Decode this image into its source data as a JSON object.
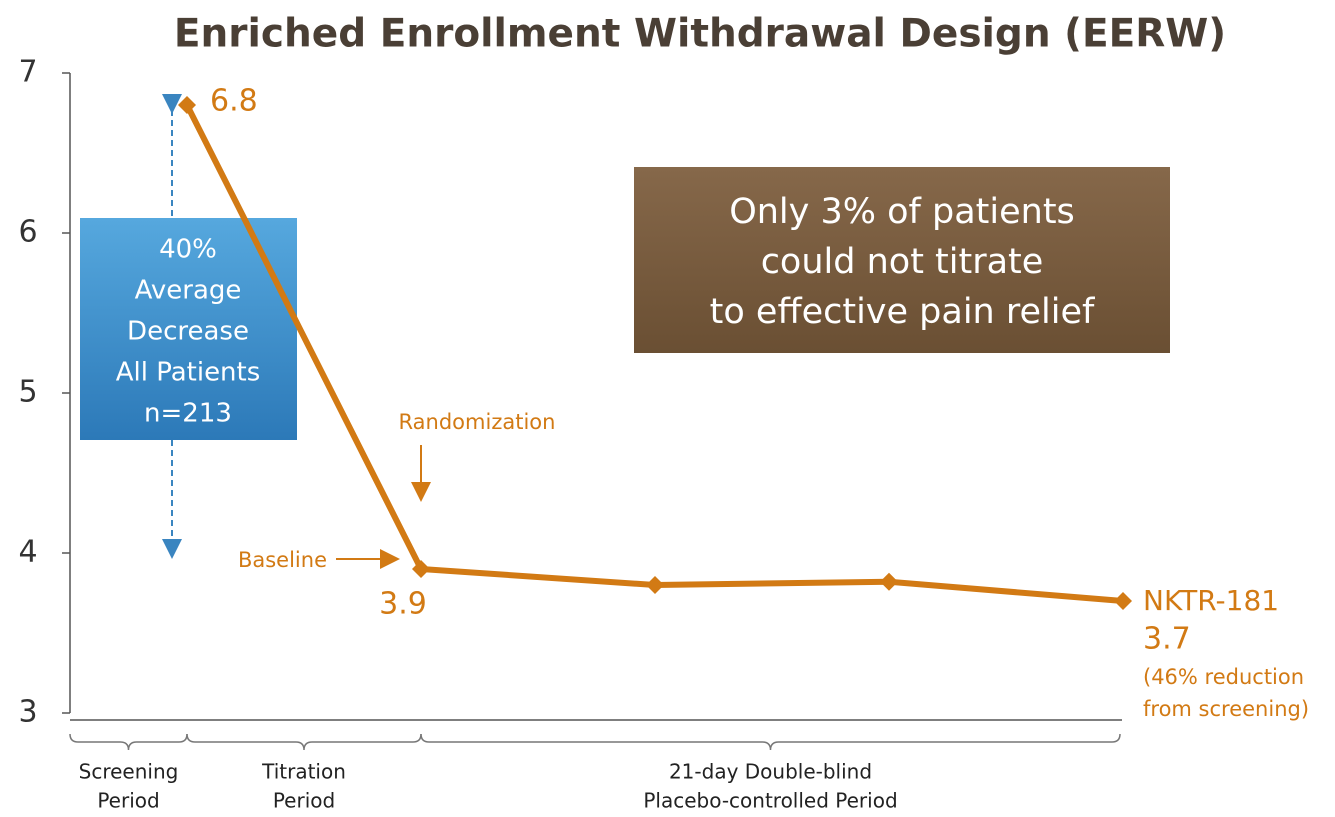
{
  "chart_data": {
    "type": "line",
    "title": "Enriched Enrollment Withdrawal Design (EERW)",
    "categories": [
      null,
      null,
      null,
      null,
      null
    ],
    "series": [
      {
        "name": "NKTR-181",
        "color": "#d27a14",
        "values": [
          6.8,
          3.9,
          3.8,
          3.82,
          3.7
        ]
      }
    ],
    "ylim": [
      3,
      7
    ],
    "yticks": [
      3,
      4,
      5,
      6,
      7
    ],
    "callout": [
      "40%",
      "Average",
      "Decrease",
      "All Patients",
      "n=213"
    ],
    "highlight": [
      "Only 3% of patients",
      "could not titrate",
      "to effective pain relief"
    ],
    "annotations": [
      "Randomization",
      "Baseline"
    ],
    "end_note": [
      "(46% reduction",
      "from screening)"
    ],
    "periods": [
      [
        "Screening",
        "Period"
      ],
      [
        "Titration",
        "Period"
      ],
      [
        "21-day Double-blind",
        "Placebo-controlled Period"
      ]
    ]
  }
}
